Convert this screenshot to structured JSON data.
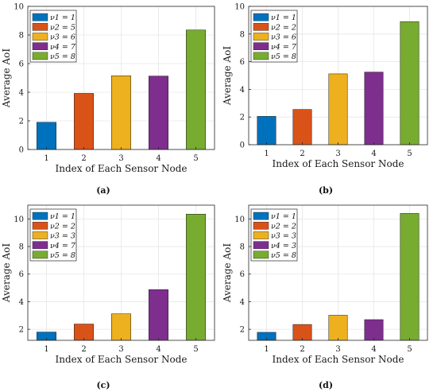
{
  "colors": [
    "#0072BD",
    "#D95319",
    "#EDB120",
    "#7E2F8E",
    "#77AC30"
  ],
  "chart_data": [
    {
      "type": "bar",
      "caption": "(a)",
      "categories": [
        "1",
        "2",
        "3",
        "4",
        "5"
      ],
      "values": [
        1.9,
        3.92,
        5.15,
        5.13,
        8.35
      ],
      "xlabel": "Index of Each Sensor Node",
      "ylabel": "Average AoI",
      "ylim": [
        0,
        10
      ],
      "yticks": [
        "0",
        "2",
        "4",
        "6",
        "8",
        "10"
      ],
      "ytick_values": [
        0,
        2,
        4,
        6,
        8,
        10
      ],
      "grid": true,
      "legend_position": "top-left",
      "legend": [
        "ν1 = 1",
        "ν2 = 5",
        "ν3 = 6",
        "ν4 = 7",
        "ν5 = 8"
      ]
    },
    {
      "type": "bar",
      "caption": "(b)",
      "categories": [
        "1",
        "2",
        "3",
        "4",
        "5"
      ],
      "values": [
        2.05,
        2.55,
        5.12,
        5.25,
        8.9
      ],
      "xlabel": "Index of Each Sensor Node",
      "ylabel": "Average AoI",
      "ylim": [
        0,
        10
      ],
      "yticks": [
        "0",
        "2",
        "4",
        "6",
        "8",
        "10"
      ],
      "ytick_values": [
        0,
        2,
        4,
        6,
        8,
        10
      ],
      "grid": true,
      "legend_position": "top-left",
      "legend": [
        "ν1 = 1",
        "ν2 = 2",
        "ν3 = 6",
        "ν4 = 7",
        "ν5 = 8"
      ]
    },
    {
      "type": "bar",
      "caption": "(c)",
      "categories": [
        "1",
        "2",
        "3",
        "4",
        "5"
      ],
      "values": [
        1.8,
        2.38,
        3.12,
        4.88,
        10.35
      ],
      "xlabel": "Index of Each Sensor Node",
      "ylabel": "Average AoI",
      "ylim": [
        1.2,
        11
      ],
      "yticks": [
        "2",
        "4",
        "6",
        "8",
        "10"
      ],
      "ytick_values": [
        2,
        4,
        6,
        8,
        10
      ],
      "grid": true,
      "legend_position": "top-left",
      "legend": [
        "ν1 = 1",
        "ν2 = 2",
        "ν3 = 3",
        "ν4 = 7",
        "ν5 = 8"
      ]
    },
    {
      "type": "bar",
      "caption": "(d)",
      "categories": [
        "1",
        "2",
        "3",
        "4",
        "5"
      ],
      "values": [
        1.78,
        2.35,
        3.02,
        2.7,
        10.4
      ],
      "xlabel": "Index of Each Sensor Node",
      "ylabel": "Average AoI",
      "ylim": [
        1.2,
        11
      ],
      "yticks": [
        "2",
        "4",
        "6",
        "8",
        "10"
      ],
      "ytick_values": [
        2,
        4,
        6,
        8,
        10
      ],
      "grid": true,
      "legend_position": "top-left",
      "legend": [
        "ν1 = 1",
        "ν2 = 2",
        "ν3 = 3",
        "ν4 = 3",
        "ν5 = 8"
      ]
    }
  ]
}
